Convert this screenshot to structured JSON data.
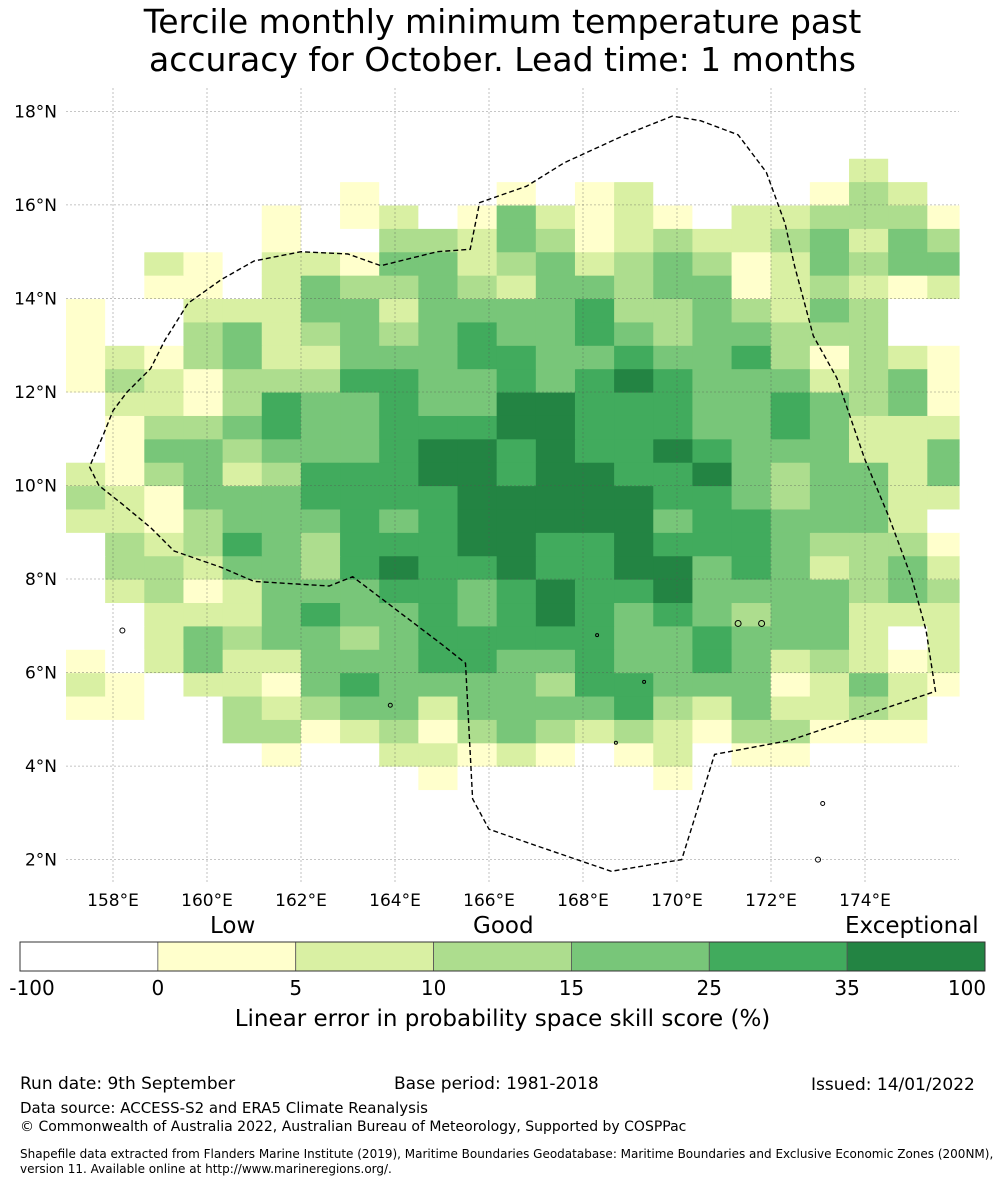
{
  "title_line1": "Tercile monthly minimum temperature past",
  "title_line2": "accuracy for October. Lead time: 1 months",
  "chart_data": {
    "type": "heatmap",
    "xlim": [
      157,
      176
    ],
    "ylim": [
      1.5,
      18.5
    ],
    "x_ticks": [
      158,
      160,
      162,
      164,
      166,
      168,
      170,
      172,
      174
    ],
    "x_tick_labels": [
      "158°E",
      "160°E",
      "162°E",
      "164°E",
      "166°E",
      "168°E",
      "170°E",
      "172°E",
      "174°E"
    ],
    "y_ticks": [
      2,
      4,
      6,
      8,
      10,
      12,
      14,
      16,
      18
    ],
    "y_tick_labels": [
      "2°N",
      "4°N",
      "6°N",
      "8°N",
      "10°N",
      "12°N",
      "14°N",
      "16°N",
      "18°N"
    ],
    "grid": true,
    "colorbar": {
      "categories": [
        "Low",
        "Good",
        "Exceptional"
      ],
      "boundaries": [
        "-100",
        "0",
        "5",
        "10",
        "15",
        "25",
        "35",
        "100"
      ],
      "colors": [
        "#ffffff",
        "#ffffcc",
        "#d9f0a3",
        "#addd8e",
        "#78c679",
        "#41ab5d",
        "#238443"
      ],
      "label": "Linear error in probability space skill score (%)"
    },
    "eez_boundary_lonlat": [
      [
        157.5,
        10.4
      ],
      [
        157.7,
        10.0
      ],
      [
        158.2,
        9.6
      ],
      [
        158.8,
        9.1
      ],
      [
        159.3,
        8.6
      ],
      [
        160.3,
        8.25
      ],
      [
        161.0,
        7.95
      ],
      [
        162.6,
        7.85
      ],
      [
        163.1,
        8.05
      ],
      [
        165.0,
        6.6
      ],
      [
        165.5,
        6.2
      ],
      [
        165.65,
        3.3
      ],
      [
        166.0,
        2.65
      ],
      [
        167.0,
        2.3
      ],
      [
        168.6,
        1.75
      ],
      [
        170.1,
        2.0
      ],
      [
        170.8,
        4.25
      ],
      [
        172.4,
        4.55
      ],
      [
        175.5,
        5.6
      ],
      [
        175.3,
        6.9
      ],
      [
        175.0,
        8.0
      ],
      [
        174.5,
        9.35
      ],
      [
        174.0,
        10.55
      ],
      [
        173.4,
        12.3
      ],
      [
        172.9,
        13.2
      ],
      [
        172.5,
        14.7
      ],
      [
        172.3,
        15.6
      ],
      [
        171.9,
        16.7
      ],
      [
        171.3,
        17.5
      ],
      [
        170.5,
        17.8
      ],
      [
        169.9,
        17.9
      ],
      [
        168.9,
        17.5
      ],
      [
        167.6,
        16.9
      ],
      [
        166.8,
        16.4
      ],
      [
        165.8,
        16.05
      ],
      [
        165.6,
        15.05
      ],
      [
        164.9,
        15.0
      ],
      [
        163.7,
        14.7
      ],
      [
        163.0,
        14.95
      ],
      [
        162.0,
        15.0
      ],
      [
        161.0,
        14.8
      ],
      [
        160.3,
        14.4
      ],
      [
        159.6,
        13.9
      ],
      [
        159.1,
        13.1
      ],
      [
        158.8,
        12.5
      ],
      [
        158.3,
        12.0
      ],
      [
        158.0,
        11.6
      ],
      [
        157.8,
        11.1
      ],
      [
        157.5,
        10.4
      ]
    ]
  },
  "footer": {
    "run_date": "Run date: 9th September",
    "base_period": "Base period: 1981-2018",
    "issued": "Issued: 14/01/2022",
    "data_source": "Data source: ACCESS-S2 and ERA5 Climate Reanalysis",
    "copyright": "© Commonwealth of Australia 2022, Australian Bureau of Meteorology, Supported by COSPPac",
    "shapefile_line1": "Shapefile data extracted from Flanders Marine Institute (2019), Maritime Boundaries Geodatabase: Maritime Boundaries and Exclusive Economic Zones (200NM),",
    "shapefile_line2": "version 11. Available online at http://www.marineregions.org/."
  }
}
